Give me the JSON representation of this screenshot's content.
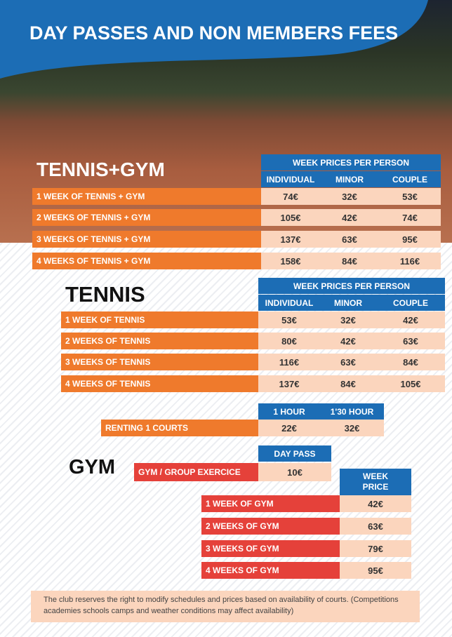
{
  "title": "DAY PASSES AND NON MEMBERS FEES",
  "tennis_gym": {
    "heading": "TENNIS+GYM",
    "group_header": "WEEK PRICES PER PERSON",
    "columns": [
      "INDIVIDUAL",
      "MINOR",
      "COUPLE"
    ],
    "rows": [
      {
        "label": "1 WEEK OF TENNIS + GYM",
        "prices": [
          "74€",
          "32€",
          "53€"
        ]
      },
      {
        "label": "2 WEEKS OF TENNIS  + GYM",
        "prices": [
          "105€",
          "42€",
          "74€"
        ]
      },
      {
        "label": "3 WEEKS OF TENNIS + GYM",
        "prices": [
          "137€",
          "63€",
          "95€"
        ]
      },
      {
        "label": "4 WEEKS OF TENNIS + GYM",
        "prices": [
          "158€",
          "84€",
          "116€"
        ]
      }
    ]
  },
  "tennis": {
    "heading": "TENNIS",
    "group_header": "WEEK PRICES PER PERSON",
    "columns": [
      "INDIVIDUAL",
      "MINOR",
      "COUPLE"
    ],
    "rows": [
      {
        "label": "1 WEEK OF  TENNIS",
        "prices": [
          "53€",
          "32€",
          "42€"
        ]
      },
      {
        "label": "2 WEEKS OF TENNIS",
        "prices": [
          "80€",
          "42€",
          "63€"
        ]
      },
      {
        "label": "3 WEEKS OF TENNIS",
        "prices": [
          "116€",
          "63€",
          "84€"
        ]
      },
      {
        "label": "4 WEEKS OF TENNIS",
        "prices": [
          "137€",
          "84€",
          "105€"
        ]
      }
    ]
  },
  "court_rental": {
    "columns": [
      "1 HOUR",
      "1'30 HOUR"
    ],
    "rows": [
      {
        "label": "RENTING 1 COURTS",
        "prices": [
          "22€",
          "32€"
        ]
      }
    ]
  },
  "gym": {
    "heading": "GYM",
    "day_pass": {
      "columns": [
        "DAY PASS"
      ],
      "rows": [
        {
          "label": "GYM / GROUP EXERCICE",
          "prices": [
            "10€"
          ]
        }
      ]
    },
    "weekly": {
      "columns": [
        "WEEK PRICE"
      ],
      "rows": [
        {
          "label": "1 WEEK OF GYM",
          "prices": [
            "42€"
          ]
        },
        {
          "label": "2 WEEKS OF GYM",
          "prices": [
            "63€"
          ]
        },
        {
          "label": "3 WEEKS OF GYM",
          "prices": [
            "79€"
          ]
        },
        {
          "label": "4 WEEKS OF GYM",
          "prices": [
            "95€"
          ]
        }
      ]
    }
  },
  "note": "The club reserves the right to modify schedules and prices based on availability of courts. (Competitions academies schools camps and weather conditions may affect availability)"
}
